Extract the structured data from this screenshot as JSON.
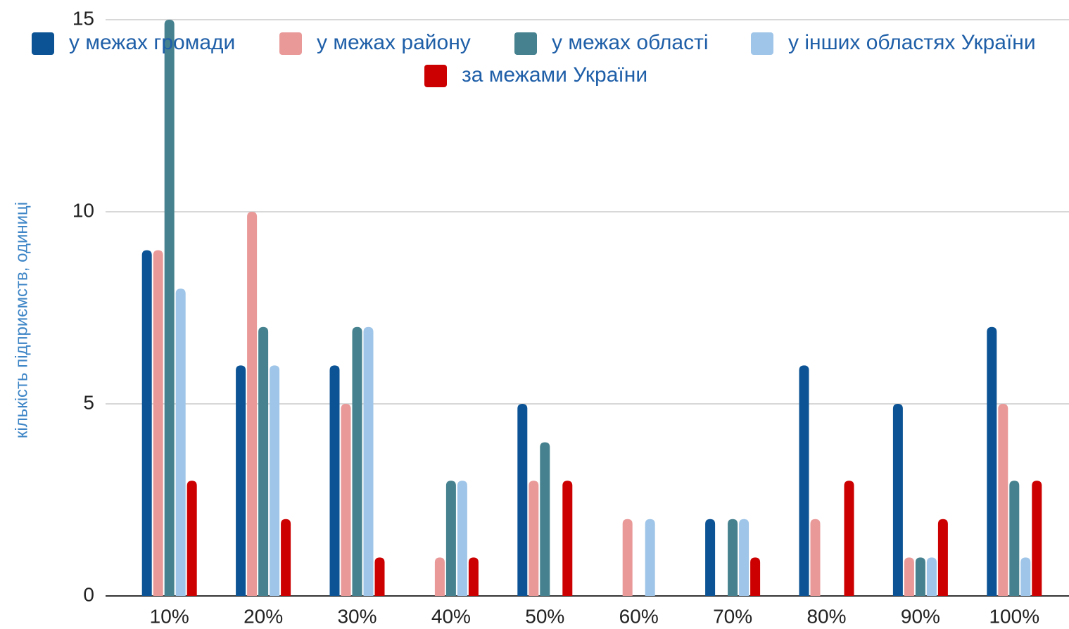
{
  "chart_data": {
    "type": "bar",
    "y_label": "кількість підприємств, одиниці",
    "categories": [
      "10%",
      "20%",
      "30%",
      "40%",
      "50%",
      "60%",
      "70%",
      "80%",
      "90%",
      "100%"
    ],
    "series": [
      {
        "name": "у межах громади",
        "color": "#0b5394",
        "values": [
          9,
          6,
          6,
          0,
          5,
          0,
          2,
          6,
          5,
          7
        ]
      },
      {
        "name": "у межах району",
        "color": "#ea9999",
        "values": [
          9,
          10,
          5,
          1,
          3,
          2,
          0,
          2,
          1,
          5
        ]
      },
      {
        "name": "у межах області",
        "color": "#45818e",
        "values": [
          15,
          7,
          7,
          3,
          4,
          0,
          2,
          0,
          1,
          3
        ]
      },
      {
        "name": "у інших областях України",
        "color": "#9fc5e8",
        "values": [
          8,
          6,
          7,
          3,
          0,
          2,
          2,
          0,
          1,
          1
        ]
      },
      {
        "name": "за межами України",
        "color": "#cc0000",
        "values": [
          3,
          2,
          1,
          1,
          3,
          0,
          1,
          3,
          2,
          3
        ]
      }
    ],
    "ylim": [
      0,
      15
    ],
    "yticks": [
      0,
      5,
      10,
      15
    ],
    "grid": true,
    "legend": "top"
  }
}
